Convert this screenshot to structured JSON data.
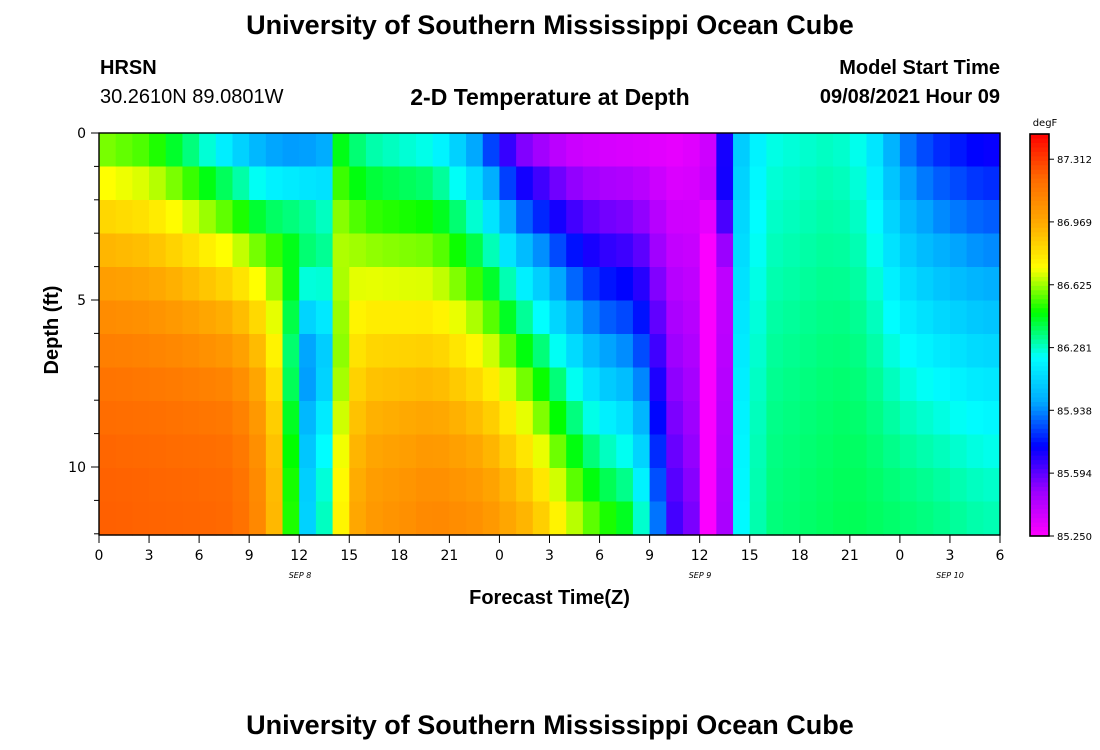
{
  "page": {
    "title_top": "University of Southern Mississippi Ocean Cube",
    "title_bottom": "University of Southern Mississippi Ocean Cube",
    "station_name": "HRSN",
    "station_coords": "30.2610N  89.0801W",
    "plot_title": "2-D Temperature at Depth",
    "model_label": "Model Start Time",
    "model_time": "09/08/2021 Hour 09"
  },
  "chart_data": {
    "type": "heatmap",
    "title": "2-D Temperature at Depth",
    "xlabel": "Forecast Time(Z)",
    "ylabel": "Depth (ft)",
    "x_tick_labels": [
      "0",
      "3",
      "6",
      "9",
      "12",
      "15",
      "18",
      "21",
      "0",
      "3",
      "6",
      "9",
      "12",
      "15",
      "18",
      "21",
      "0",
      "3",
      "6"
    ],
    "date_labels": [
      "SEP 8",
      "SEP 9",
      "SEP 10"
    ],
    "y_tick_labels": [
      "0",
      "5",
      "10"
    ],
    "y_range": [
      0,
      12
    ],
    "colorbar_unit": "degF",
    "colorbar_labels": [
      "87.312",
      "86.969",
      "86.625",
      "86.281",
      "85.938",
      "85.594",
      "85.250"
    ],
    "value_range": [
      85.25,
      87.45
    ],
    "grid": false,
    "colors": {
      "scale": [
        "#ff00ff",
        "#9b00ff",
        "#0000ff",
        "#00aaff",
        "#00ffff",
        "#00ff00",
        "#ffff00",
        "#ffaa00",
        "#ff6a00",
        "#ff0000"
      ],
      "frame": "#000000"
    }
  }
}
